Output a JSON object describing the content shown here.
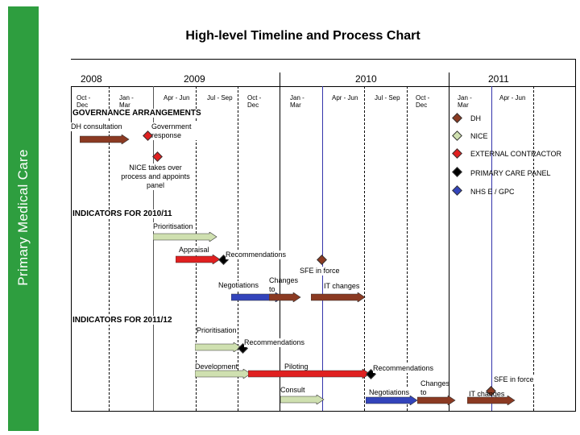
{
  "title": "High-level Timeline and Process Chart",
  "sidebar_label": "Primary Medical Care",
  "years": [
    "2008",
    "2009",
    "2010",
    "2011"
  ],
  "quarters": [
    "Oct - Dec",
    "Jan - Mar",
    "Apr - Jun",
    "Jul - Sep",
    "Oct - Dec",
    "Jan - Mar",
    "Apr - Jun",
    "Jul - Sep",
    "Oct - Dec",
    "Jan - Mar",
    "Apr - Jun"
  ],
  "sections": {
    "governance": "GOVERNANCE ARRANGEMENTS",
    "ind_2010": "INDICATORS FOR 2010/11",
    "ind_2011": "INDICATORS FOR 2011/12"
  },
  "labels": {
    "dh_consult": "DH consultation",
    "gov_response": "Government response",
    "nice_takes": "NICE takes over process and appoints panel",
    "prior1": "Prioritisation",
    "appraisal": "Appraisal",
    "recs1": "Recommendations",
    "sfe1": "SFE in force",
    "negot1": "Negotiations",
    "changes1": "Changes to contract",
    "it1": "IT changes",
    "prior2": "Prioritisation",
    "recs2": "Recommendations",
    "development": "Development",
    "piloting": "Piloting",
    "consult": "Consult",
    "recs3": "Recommendations",
    "negot2": "Negotiations",
    "changes2": "Changes to contract",
    "sfe2": "SFE in force",
    "it2": "IT changes"
  },
  "legend": [
    {
      "label": "DH",
      "color": "#8b3a22"
    },
    {
      "label": "NICE",
      "color": "#cfe0b0"
    },
    {
      "label": "EXTERNAL CONTRACTOR",
      "color": "#e02020"
    },
    {
      "label": "PRIMARY CARE PANEL",
      "color": "#000000"
    },
    {
      "label": "NHS E / GPC",
      "color": "#3344bb"
    }
  ],
  "colors": {
    "dh": "#8b3a22",
    "nice": "#cfe0b0",
    "contractor": "#e02020",
    "panel": "#000000",
    "nhs": "#3344bb",
    "sidebar": "#2e9e3f"
  }
}
